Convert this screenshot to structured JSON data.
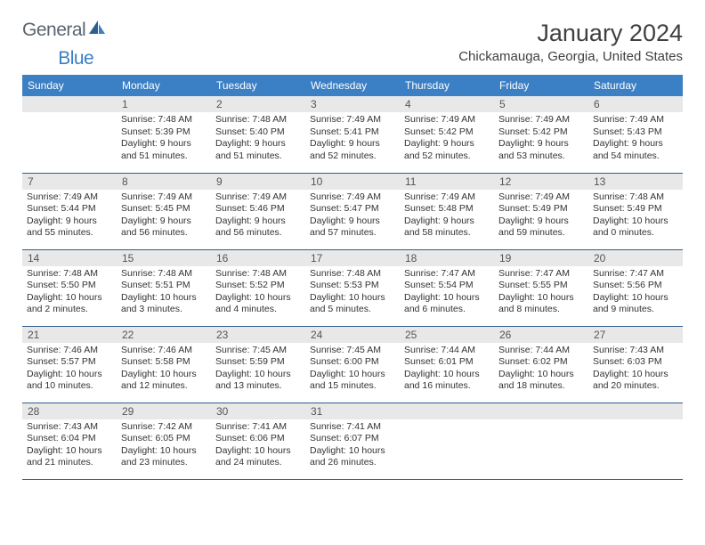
{
  "logo": {
    "text1": "General",
    "text2": "Blue"
  },
  "header": {
    "month_title": "January 2024",
    "location": "Chickamauga, Georgia, United States"
  },
  "colors": {
    "header_bg": "#3b7fc4",
    "header_text": "#ffffff",
    "daynum_bg": "#e8e8e8",
    "border": "#2e5f8f",
    "logo_gray": "#5a6570",
    "logo_blue": "#3b7fc4"
  },
  "weekdays": [
    "Sunday",
    "Monday",
    "Tuesday",
    "Wednesday",
    "Thursday",
    "Friday",
    "Saturday"
  ],
  "weeks": [
    [
      {
        "n": "",
        "lines": []
      },
      {
        "n": "1",
        "lines": [
          "Sunrise: 7:48 AM",
          "Sunset: 5:39 PM",
          "Daylight: 9 hours and 51 minutes."
        ]
      },
      {
        "n": "2",
        "lines": [
          "Sunrise: 7:48 AM",
          "Sunset: 5:40 PM",
          "Daylight: 9 hours and 51 minutes."
        ]
      },
      {
        "n": "3",
        "lines": [
          "Sunrise: 7:49 AM",
          "Sunset: 5:41 PM",
          "Daylight: 9 hours and 52 minutes."
        ]
      },
      {
        "n": "4",
        "lines": [
          "Sunrise: 7:49 AM",
          "Sunset: 5:42 PM",
          "Daylight: 9 hours and 52 minutes."
        ]
      },
      {
        "n": "5",
        "lines": [
          "Sunrise: 7:49 AM",
          "Sunset: 5:42 PM",
          "Daylight: 9 hours and 53 minutes."
        ]
      },
      {
        "n": "6",
        "lines": [
          "Sunrise: 7:49 AM",
          "Sunset: 5:43 PM",
          "Daylight: 9 hours and 54 minutes."
        ]
      }
    ],
    [
      {
        "n": "7",
        "lines": [
          "Sunrise: 7:49 AM",
          "Sunset: 5:44 PM",
          "Daylight: 9 hours and 55 minutes."
        ]
      },
      {
        "n": "8",
        "lines": [
          "Sunrise: 7:49 AM",
          "Sunset: 5:45 PM",
          "Daylight: 9 hours and 56 minutes."
        ]
      },
      {
        "n": "9",
        "lines": [
          "Sunrise: 7:49 AM",
          "Sunset: 5:46 PM",
          "Daylight: 9 hours and 56 minutes."
        ]
      },
      {
        "n": "10",
        "lines": [
          "Sunrise: 7:49 AM",
          "Sunset: 5:47 PM",
          "Daylight: 9 hours and 57 minutes."
        ]
      },
      {
        "n": "11",
        "lines": [
          "Sunrise: 7:49 AM",
          "Sunset: 5:48 PM",
          "Daylight: 9 hours and 58 minutes."
        ]
      },
      {
        "n": "12",
        "lines": [
          "Sunrise: 7:49 AM",
          "Sunset: 5:49 PM",
          "Daylight: 9 hours and 59 minutes."
        ]
      },
      {
        "n": "13",
        "lines": [
          "Sunrise: 7:48 AM",
          "Sunset: 5:49 PM",
          "Daylight: 10 hours and 0 minutes."
        ]
      }
    ],
    [
      {
        "n": "14",
        "lines": [
          "Sunrise: 7:48 AM",
          "Sunset: 5:50 PM",
          "Daylight: 10 hours and 2 minutes."
        ]
      },
      {
        "n": "15",
        "lines": [
          "Sunrise: 7:48 AM",
          "Sunset: 5:51 PM",
          "Daylight: 10 hours and 3 minutes."
        ]
      },
      {
        "n": "16",
        "lines": [
          "Sunrise: 7:48 AM",
          "Sunset: 5:52 PM",
          "Daylight: 10 hours and 4 minutes."
        ]
      },
      {
        "n": "17",
        "lines": [
          "Sunrise: 7:48 AM",
          "Sunset: 5:53 PM",
          "Daylight: 10 hours and 5 minutes."
        ]
      },
      {
        "n": "18",
        "lines": [
          "Sunrise: 7:47 AM",
          "Sunset: 5:54 PM",
          "Daylight: 10 hours and 6 minutes."
        ]
      },
      {
        "n": "19",
        "lines": [
          "Sunrise: 7:47 AM",
          "Sunset: 5:55 PM",
          "Daylight: 10 hours and 8 minutes."
        ]
      },
      {
        "n": "20",
        "lines": [
          "Sunrise: 7:47 AM",
          "Sunset: 5:56 PM",
          "Daylight: 10 hours and 9 minutes."
        ]
      }
    ],
    [
      {
        "n": "21",
        "lines": [
          "Sunrise: 7:46 AM",
          "Sunset: 5:57 PM",
          "Daylight: 10 hours and 10 minutes."
        ]
      },
      {
        "n": "22",
        "lines": [
          "Sunrise: 7:46 AM",
          "Sunset: 5:58 PM",
          "Daylight: 10 hours and 12 minutes."
        ]
      },
      {
        "n": "23",
        "lines": [
          "Sunrise: 7:45 AM",
          "Sunset: 5:59 PM",
          "Daylight: 10 hours and 13 minutes."
        ]
      },
      {
        "n": "24",
        "lines": [
          "Sunrise: 7:45 AM",
          "Sunset: 6:00 PM",
          "Daylight: 10 hours and 15 minutes."
        ]
      },
      {
        "n": "25",
        "lines": [
          "Sunrise: 7:44 AM",
          "Sunset: 6:01 PM",
          "Daylight: 10 hours and 16 minutes."
        ]
      },
      {
        "n": "26",
        "lines": [
          "Sunrise: 7:44 AM",
          "Sunset: 6:02 PM",
          "Daylight: 10 hours and 18 minutes."
        ]
      },
      {
        "n": "27",
        "lines": [
          "Sunrise: 7:43 AM",
          "Sunset: 6:03 PM",
          "Daylight: 10 hours and 20 minutes."
        ]
      }
    ],
    [
      {
        "n": "28",
        "lines": [
          "Sunrise: 7:43 AM",
          "Sunset: 6:04 PM",
          "Daylight: 10 hours and 21 minutes."
        ]
      },
      {
        "n": "29",
        "lines": [
          "Sunrise: 7:42 AM",
          "Sunset: 6:05 PM",
          "Daylight: 10 hours and 23 minutes."
        ]
      },
      {
        "n": "30",
        "lines": [
          "Sunrise: 7:41 AM",
          "Sunset: 6:06 PM",
          "Daylight: 10 hours and 24 minutes."
        ]
      },
      {
        "n": "31",
        "lines": [
          "Sunrise: 7:41 AM",
          "Sunset: 6:07 PM",
          "Daylight: 10 hours and 26 minutes."
        ]
      },
      {
        "n": "",
        "lines": []
      },
      {
        "n": "",
        "lines": []
      },
      {
        "n": "",
        "lines": []
      }
    ]
  ]
}
